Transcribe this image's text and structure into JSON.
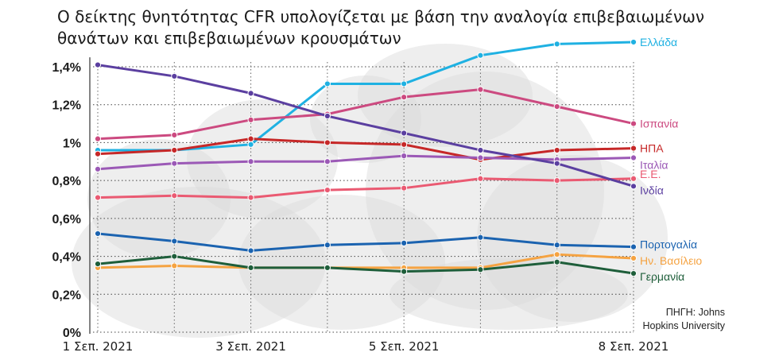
{
  "chart_data": {
    "type": "line",
    "title": "Ο δείκτης θνητότητας CFR υπολογίζεται με βάση την αναλογία επιβεβαιωμένων θανάτων και επιβεβαιωμένων κρουσμάτων",
    "source": "ΠΗΓΗ: Johns Hopkins University",
    "xlabel": "",
    "ylabel": "",
    "x": [
      1,
      2,
      3,
      4,
      5,
      6,
      7,
      8
    ],
    "x_tick_labels": [
      {
        "x": 1,
        "label": "1 Σεπ. 2021"
      },
      {
        "x": 3,
        "label": "3 Σεπ. 2021"
      },
      {
        "x": 5,
        "label": "5 Σεπ. 2021"
      },
      {
        "x": 8,
        "label": "8 Σεπ. 2021"
      }
    ],
    "y_ticks": [
      {
        "value": 0,
        "label": "0%"
      },
      {
        "value": 0.2,
        "label": "0,2%"
      },
      {
        "value": 0.4,
        "label": "0,4%"
      },
      {
        "value": 0.6,
        "label": "0,6%"
      },
      {
        "value": 0.8,
        "label": "0,8%"
      },
      {
        "value": 1.0,
        "label": "1%"
      },
      {
        "value": 1.2,
        "label": "1,2%"
      },
      {
        "value": 1.4,
        "label": "1,4%"
      }
    ],
    "ylim": [
      0,
      1.5
    ],
    "grid": true,
    "series": [
      {
        "name": "Ελλάδα",
        "color": "#1fb1e2",
        "values": [
          0.96,
          0.96,
          0.99,
          1.31,
          1.31,
          1.46,
          1.52,
          1.53
        ]
      },
      {
        "name": "Ισπανία",
        "color": "#cc4a80",
        "values": [
          1.02,
          1.04,
          1.12,
          1.15,
          1.24,
          1.28,
          1.19,
          1.1
        ]
      },
      {
        "name": "ΗΠΑ",
        "color": "#c62828",
        "values": [
          0.94,
          0.96,
          1.02,
          1.0,
          0.99,
          0.91,
          0.96,
          0.97
        ]
      },
      {
        "name": "Ιταλία",
        "color": "#9b59b6",
        "values": [
          0.86,
          0.89,
          0.9,
          0.9,
          0.93,
          0.92,
          0.91,
          0.92
        ]
      },
      {
        "name": "Ε.Ε.",
        "color": "#ea5a72",
        "values": [
          0.71,
          0.72,
          0.71,
          0.75,
          0.76,
          0.81,
          0.8,
          0.81
        ]
      },
      {
        "name": "Ινδία",
        "color": "#5b3fa0",
        "values": [
          1.41,
          1.35,
          1.26,
          1.14,
          1.05,
          0.96,
          0.89,
          0.77
        ]
      },
      {
        "name": "Πορτογαλία",
        "color": "#1b63b0",
        "values": [
          0.52,
          0.48,
          0.43,
          0.46,
          0.47,
          0.5,
          0.46,
          0.45
        ]
      },
      {
        "name": "Ην. Βασίλειο",
        "color": "#f5a342",
        "values": [
          0.34,
          0.35,
          0.34,
          0.34,
          0.34,
          0.34,
          0.41,
          0.39
        ]
      },
      {
        "name": "Γερμανία",
        "color": "#1e5e3a",
        "values": [
          0.36,
          0.4,
          0.34,
          0.34,
          0.32,
          0.33,
          0.37,
          0.31
        ]
      }
    ]
  }
}
